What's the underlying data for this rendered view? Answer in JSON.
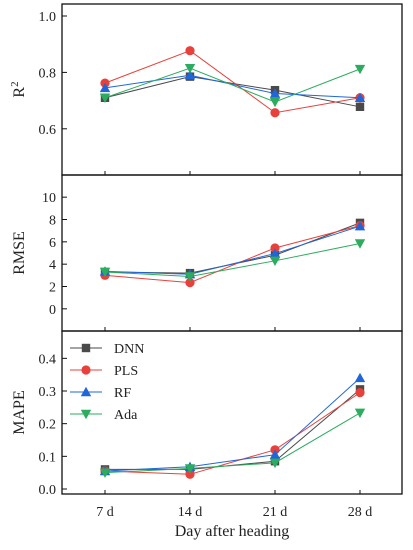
{
  "chart_data": {
    "type": "line",
    "shared_x": {
      "categories": [
        "7 d",
        "14 d",
        "21 d",
        "28 d"
      ],
      "xlabel": "Day after heading"
    },
    "legend_placement": "upper-left of bottom panel",
    "series_styles": [
      {
        "name": "DNN",
        "color": "#4a4a4a",
        "marker": "square"
      },
      {
        "name": "PLS",
        "color": "#e8413c",
        "marker": "circle"
      },
      {
        "name": "RF",
        "color": "#2166d9",
        "marker": "triangle-up"
      },
      {
        "name": "Ada",
        "color": "#2bac5e",
        "marker": "triangle-down"
      }
    ],
    "panels": [
      {
        "ylabel": "R",
        "ylabel_sup": "2",
        "ylim": [
          0.5,
          1.0
        ],
        "yticks": [
          "0.6",
          "0.8",
          "1.0"
        ],
        "ytick_values": [
          0.6,
          0.8,
          1.0
        ],
        "series": [
          {
            "name": "DNN",
            "values": [
              0.71,
              0.785,
              0.737,
              0.678
            ]
          },
          {
            "name": "PLS",
            "values": [
              0.762,
              0.877,
              0.657,
              0.71
            ]
          },
          {
            "name": "RF",
            "values": [
              0.745,
              0.79,
              0.725,
              0.71
            ]
          },
          {
            "name": "Ada",
            "values": [
              0.71,
              0.815,
              0.695,
              0.812
            ]
          }
        ]
      },
      {
        "ylabel": "RMSE",
        "ylim": [
          -1,
          11
        ],
        "yticks": [
          "0",
          "2",
          "4",
          "6",
          "8",
          "10"
        ],
        "ytick_values": [
          0,
          2,
          4,
          6,
          8,
          10
        ],
        "series": [
          {
            "name": "DNN",
            "values": [
              3.3,
              3.2,
              4.8,
              7.7
            ]
          },
          {
            "name": "PLS",
            "values": [
              3.0,
              2.35,
              5.45,
              7.45
            ]
          },
          {
            "name": "RF",
            "values": [
              3.35,
              3.1,
              4.95,
              7.4
            ]
          },
          {
            "name": "Ada",
            "values": [
              3.3,
              2.9,
              4.3,
              5.85
            ]
          }
        ]
      },
      {
        "ylabel": "MAPE",
        "ylim": [
          0,
          0.45
        ],
        "yticks": [
          "0.0",
          "0.1",
          "0.2",
          "0.3",
          "0.4"
        ],
        "ytick_values": [
          0,
          0.1,
          0.2,
          0.3,
          0.4
        ],
        "series": [
          {
            "name": "DNN",
            "values": [
              0.06,
              0.06,
              0.085,
              0.305
            ]
          },
          {
            "name": "PLS",
            "values": [
              0.055,
              0.045,
              0.12,
              0.295
            ]
          },
          {
            "name": "RF",
            "values": [
              0.055,
              0.068,
              0.105,
              0.34
            ]
          },
          {
            "name": "Ada",
            "values": [
              0.05,
              0.063,
              0.08,
              0.233
            ]
          }
        ]
      }
    ]
  }
}
